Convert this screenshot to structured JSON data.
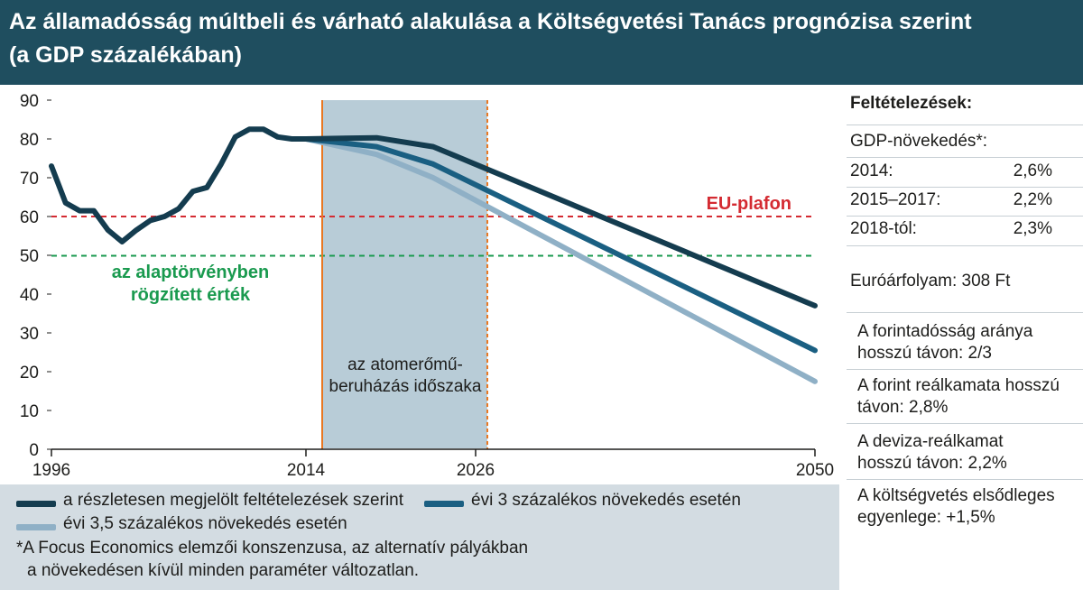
{
  "title": {
    "line1": "Az államadósság múltbeli és várható alakulása a Költségvetési Tanács prognózisa szerint",
    "line2": "(a GDP százalékában)"
  },
  "chart_data": {
    "type": "line",
    "ylim": [
      0,
      90
    ],
    "xlim": [
      1996,
      2050
    ],
    "y_ticks": [
      "0",
      "10",
      "20",
      "30",
      "40",
      "50",
      "60",
      "70",
      "80",
      "90"
    ],
    "x_ticks": [
      "1996",
      "2014",
      "2026",
      "2050"
    ],
    "reference_lines": [
      {
        "label": "EU-plafon",
        "value": 60,
        "color": "#d42b32"
      },
      {
        "label_line1": "az alaptörvényben",
        "label_line2": "rögzített érték",
        "value": 50,
        "color": "#1a9a4f"
      }
    ],
    "shaded_period": {
      "from": 2014,
      "to": 2026,
      "label_line1": "az atomerőmű-",
      "label_line2": "beruházás időszaka"
    },
    "historical": {
      "x": [
        1996,
        1997,
        1998,
        1999,
        2000,
        2001,
        2002,
        2003,
        2004,
        2005,
        2006,
        2007,
        2008,
        2009,
        2010,
        2011,
        2012,
        2013,
        2014
      ],
      "values": [
        73,
        63.5,
        61.5,
        61.5,
        56.5,
        53.5,
        56.5,
        59,
        60,
        62,
        66.5,
        67.5,
        73.5,
        80.5,
        82.5,
        82.5,
        80.5,
        80,
        80
      ]
    },
    "series": [
      {
        "name": "a részletesen megjelölt feltételezések szerint",
        "color": "#143c4f",
        "x": [
          2014,
          2019,
          2023,
          2050
        ],
        "values": [
          80,
          80.3,
          78,
          37
        ]
      },
      {
        "name": "évi 3 százalékos növekedés esetén",
        "color": "#1a5f82",
        "x": [
          2014,
          2019,
          2023,
          2050
        ],
        "values": [
          80,
          78,
          73.5,
          25.5
        ]
      },
      {
        "name": "évi 3,5 százalékos növekedés esetén",
        "color": "#8fb0c6",
        "x": [
          2014,
          2019,
          2023,
          2050
        ],
        "values": [
          80,
          76,
          70,
          17.5
        ]
      }
    ]
  },
  "legend": {
    "footnote_line1": "*A Focus Economics elemzői konszenzusa, az alternatív pályákban",
    "footnote_line2": "a növekedésen kívül minden paraméter változatlan."
  },
  "sidebar": {
    "heading": "Feltételezések:",
    "gdp_heading": "GDP-növekedés*:",
    "rows": [
      {
        "label": "2014:",
        "value": "2,6%"
      },
      {
        "label": "2015–2017:",
        "value": "2,2%"
      },
      {
        "label": "2018-tól:",
        "value": "2,3%"
      }
    ],
    "exchange": "Euróárfolyam: 308 Ft",
    "forint_share_1": "A forintadósság aránya",
    "forint_share_2": "hosszú távon: 2/3",
    "forint_rate_1": "A forint reálkamata hosszú",
    "forint_rate_2": "távon: 2,8%",
    "fx_rate_1": "A deviza-reálkamat",
    "fx_rate_2": "hosszú távon: 2,2%",
    "primary_1": "A költségvetés elsődleges",
    "primary_2": "egyenlege: +1,5%"
  }
}
